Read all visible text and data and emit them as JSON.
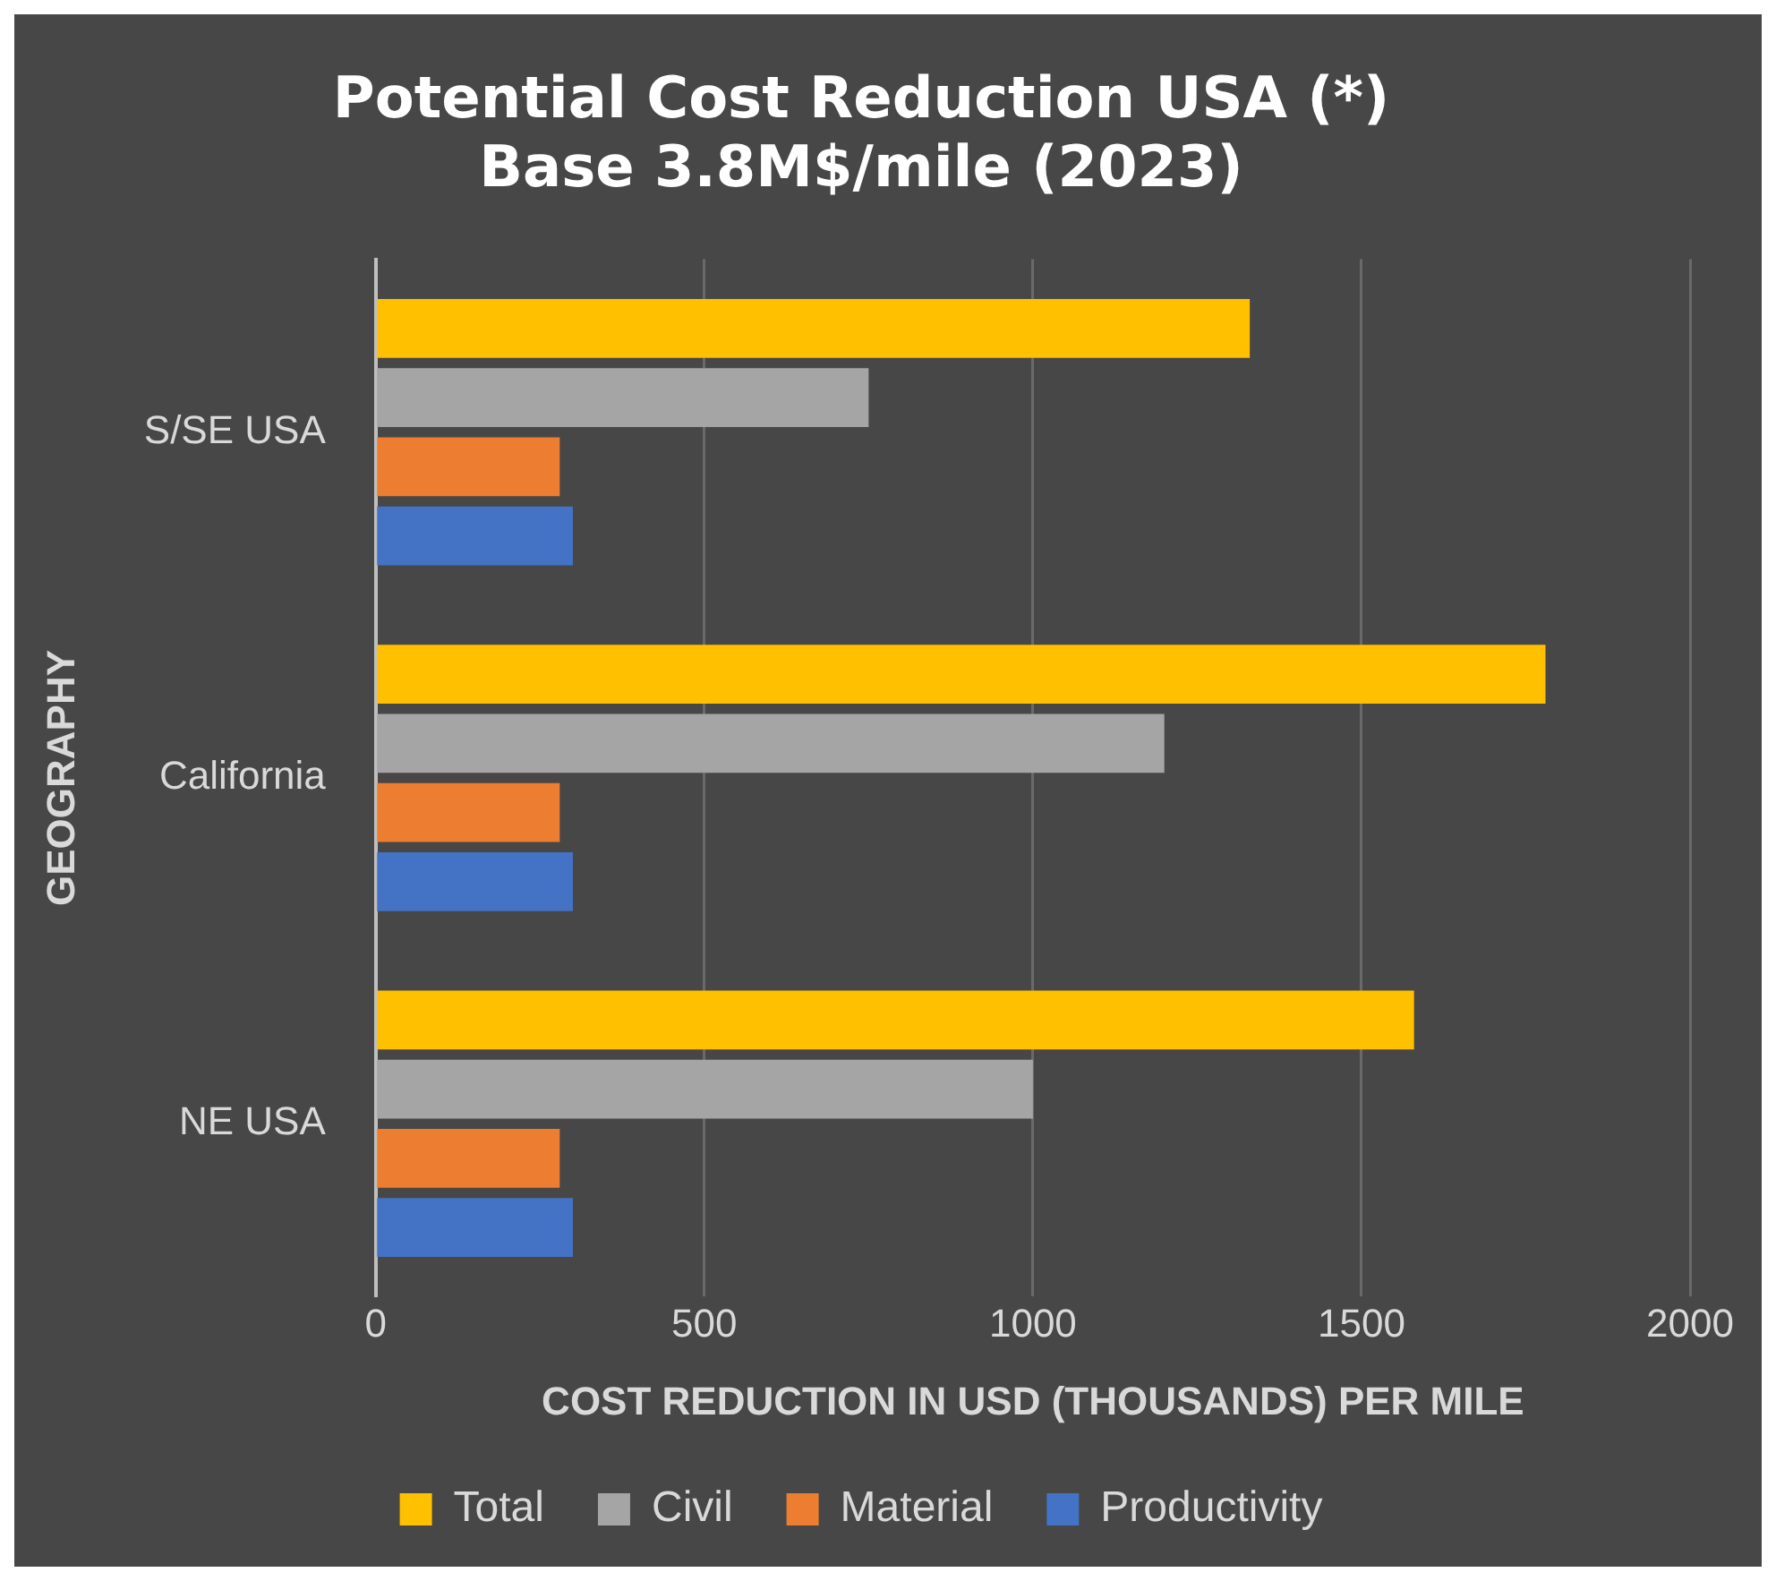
{
  "chart_data": {
    "type": "bar",
    "orientation": "horizontal",
    "title": "Potential Cost Reduction USA (*)\nBase 3.8M$/mile (2023)",
    "xlabel": "COST REDUCTION IN USD (THOUSANDS) PER MILE",
    "ylabel": "GEOGRAPHY",
    "categories": [
      "S/SE USA",
      "California",
      "NE USA"
    ],
    "series": [
      {
        "name": "Total",
        "color": "#ffc000",
        "values": [
          1330,
          1780,
          1580
        ]
      },
      {
        "name": "Civil",
        "color": "#a5a5a5",
        "values": [
          750,
          1200,
          1000
        ]
      },
      {
        "name": "Material",
        "color": "#ed7d31",
        "values": [
          280,
          280,
          280
        ]
      },
      {
        "name": "Productivity",
        "color": "#4472c4",
        "values": [
          300,
          300,
          300
        ]
      }
    ],
    "xlim": [
      0,
      2000
    ],
    "xticks": [
      0,
      500,
      1000,
      1500,
      2000
    ],
    "grid": "x",
    "legend": "bottom"
  }
}
